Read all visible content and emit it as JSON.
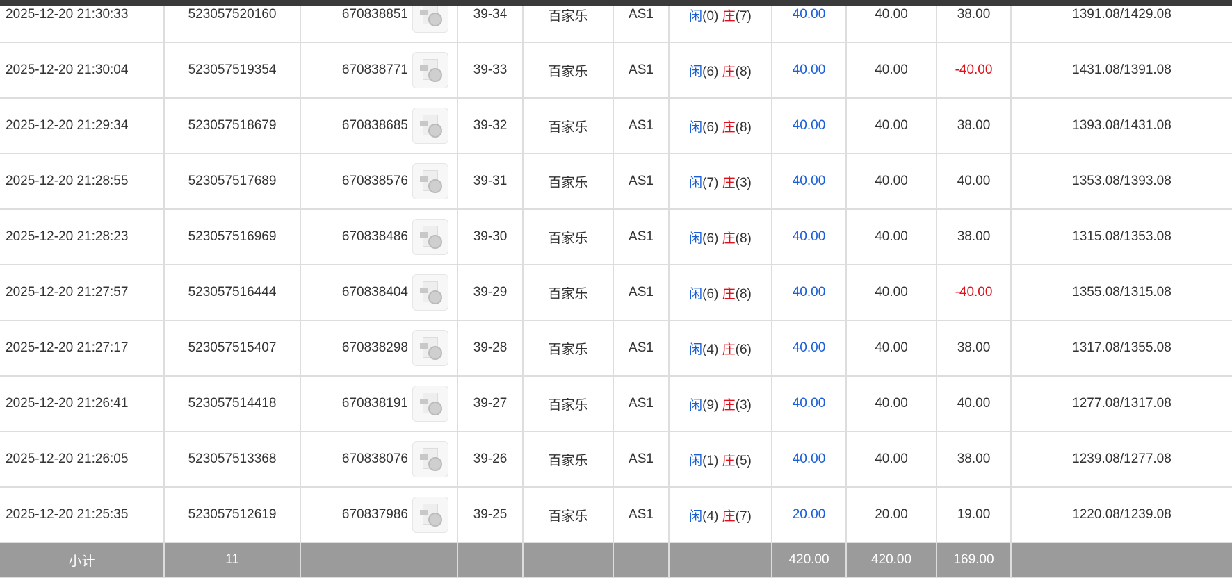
{
  "rows": [
    {
      "time": "2025-12-20 21:30:33",
      "order": "523057520160",
      "round": "670838851",
      "shoe": "39-34",
      "game": "百家乐",
      "table": "AS1",
      "player_label": "闲",
      "player": "(0)",
      "banker_label": "庄",
      "banker": "(7)",
      "bet": "40.00",
      "valid": "40.00",
      "win": "38.00",
      "balance": "1391.08/1429.08"
    },
    {
      "time": "2025-12-20 21:30:04",
      "order": "523057519354",
      "round": "670838771",
      "shoe": "39-33",
      "game": "百家乐",
      "table": "AS1",
      "player_label": "闲",
      "player": "(6)",
      "banker_label": "庄",
      "banker": "(8)",
      "bet": "40.00",
      "valid": "40.00",
      "win": "-40.00",
      "balance": "1431.08/1391.08"
    },
    {
      "time": "2025-12-20 21:29:34",
      "order": "523057518679",
      "round": "670838685",
      "shoe": "39-32",
      "game": "百家乐",
      "table": "AS1",
      "player_label": "闲",
      "player": "(6)",
      "banker_label": "庄",
      "banker": "(8)",
      "bet": "40.00",
      "valid": "40.00",
      "win": "38.00",
      "balance": "1393.08/1431.08"
    },
    {
      "time": "2025-12-20 21:28:55",
      "order": "523057517689",
      "round": "670838576",
      "shoe": "39-31",
      "game": "百家乐",
      "table": "AS1",
      "player_label": "闲",
      "player": "(7)",
      "banker_label": "庄",
      "banker": "(3)",
      "bet": "40.00",
      "valid": "40.00",
      "win": "40.00",
      "balance": "1353.08/1393.08"
    },
    {
      "time": "2025-12-20 21:28:23",
      "order": "523057516969",
      "round": "670838486",
      "shoe": "39-30",
      "game": "百家乐",
      "table": "AS1",
      "player_label": "闲",
      "player": "(6)",
      "banker_label": "庄",
      "banker": "(8)",
      "bet": "40.00",
      "valid": "40.00",
      "win": "38.00",
      "balance": "1315.08/1353.08"
    },
    {
      "time": "2025-12-20 21:27:57",
      "order": "523057516444",
      "round": "670838404",
      "shoe": "39-29",
      "game": "百家乐",
      "table": "AS1",
      "player_label": "闲",
      "player": "(6)",
      "banker_label": "庄",
      "banker": "(8)",
      "bet": "40.00",
      "valid": "40.00",
      "win": "-40.00",
      "balance": "1355.08/1315.08"
    },
    {
      "time": "2025-12-20 21:27:17",
      "order": "523057515407",
      "round": "670838298",
      "shoe": "39-28",
      "game": "百家乐",
      "table": "AS1",
      "player_label": "闲",
      "player": "(4)",
      "banker_label": "庄",
      "banker": "(6)",
      "bet": "40.00",
      "valid": "40.00",
      "win": "38.00",
      "balance": "1317.08/1355.08"
    },
    {
      "time": "2025-12-20 21:26:41",
      "order": "523057514418",
      "round": "670838191",
      "shoe": "39-27",
      "game": "百家乐",
      "table": "AS1",
      "player_label": "闲",
      "player": "(9)",
      "banker_label": "庄",
      "banker": "(3)",
      "bet": "40.00",
      "valid": "40.00",
      "win": "40.00",
      "balance": "1277.08/1317.08"
    },
    {
      "time": "2025-12-20 21:26:05",
      "order": "523057513368",
      "round": "670838076",
      "shoe": "39-26",
      "game": "百家乐",
      "table": "AS1",
      "player_label": "闲",
      "player": "(1)",
      "banker_label": "庄",
      "banker": "(5)",
      "bet": "40.00",
      "valid": "40.00",
      "win": "38.00",
      "balance": "1239.08/1277.08"
    },
    {
      "time": "2025-12-20 21:25:35",
      "order": "523057512619",
      "round": "670837986",
      "shoe": "39-25",
      "game": "百家乐",
      "table": "AS1",
      "player_label": "闲",
      "player": "(4)",
      "banker_label": "庄",
      "banker": "(7)",
      "bet": "20.00",
      "valid": "20.00",
      "win": "19.00",
      "balance": "1220.08/1239.08"
    }
  ],
  "subtotal": {
    "label": "小计",
    "count": "11",
    "bet": "420.00",
    "valid": "420.00",
    "win": "169.00"
  },
  "icons": {
    "replay": "video-file-icon"
  },
  "colors": {
    "player": "#1a5fd8",
    "banker": "#e0101a",
    "loss": "#e0101a",
    "subtotal_bg": "#9b9b9b"
  }
}
